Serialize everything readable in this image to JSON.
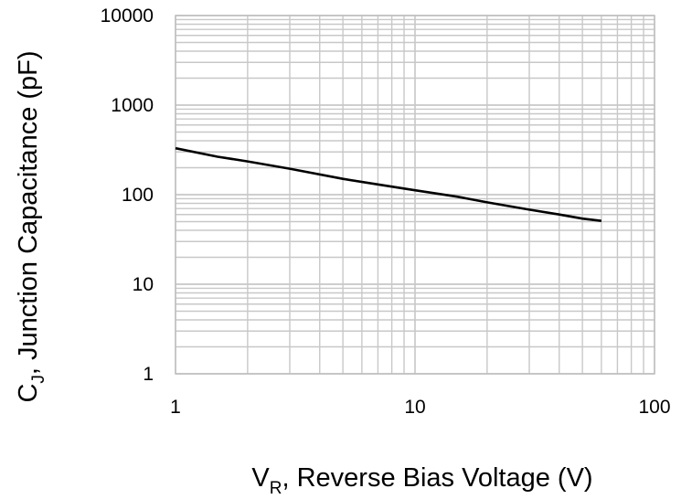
{
  "chart_data": {
    "type": "line",
    "x_scale": "log",
    "y_scale": "log",
    "xlim": [
      1,
      100
    ],
    "ylim": [
      1,
      10000
    ],
    "grid": true,
    "x_ticks": [
      "1",
      "10",
      "100"
    ],
    "y_ticks": [
      "10000",
      "1000",
      "100",
      "10",
      "1"
    ],
    "xlabel": {
      "main": "V",
      "sub": "R",
      "rest": ", Reverse Bias Voltage (V)"
    },
    "ylabel": {
      "main": "C",
      "sub": "J",
      "rest": ", Junction Capacitance (pF)"
    },
    "series": [
      {
        "color": "#000000",
        "x": [
          1,
          1.5,
          2,
          3,
          5,
          7,
          10,
          15,
          20,
          30,
          40,
          50,
          60
        ],
        "y": [
          330,
          265,
          235,
          195,
          150,
          130,
          112,
          95,
          82,
          68,
          60,
          54,
          51
        ]
      }
    ]
  }
}
